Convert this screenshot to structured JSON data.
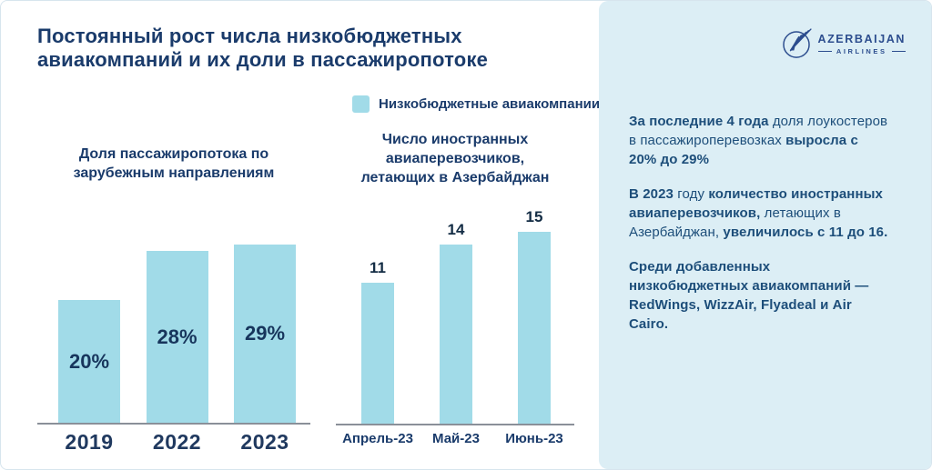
{
  "header": {
    "title": "Постоянный рост числа низкобюджетных авиакомпаний и их доли в пассажиропотоке"
  },
  "legend": {
    "label": "Низкобюджетные авиакомпании",
    "swatch_color": "#a1dbe8"
  },
  "logo": {
    "brand": "AZERBAIJAN",
    "sub": "AIRLINES",
    "color": "#2c4d8e"
  },
  "colors": {
    "bar_fill": "#a1dbe8",
    "title_navy": "#1a3b6b",
    "panel_background": "#dceef5",
    "panel_text": "#1d4e7a",
    "axis_line": "#8a9099"
  },
  "chart_data": [
    {
      "type": "bar",
      "title": "Доля пассажиропотока по зарубежным направлениям",
      "categories": [
        "2019",
        "2022",
        "2023"
      ],
      "values": [
        20,
        28,
        29
      ],
      "value_labels": [
        "20%",
        "28%",
        "29%"
      ],
      "ylabel": "",
      "xlabel": "",
      "ylim": [
        0,
        32
      ],
      "grid": false,
      "bar_color": "#a1dbe8",
      "label_position": "inside-center"
    },
    {
      "type": "bar",
      "title": "Число иностранных авиаперевозчиков, летающих в Азербайджан",
      "categories": [
        "Апрель-23",
        "Май-23",
        "Июнь-23"
      ],
      "values": [
        11,
        14,
        15
      ],
      "value_labels": [
        "11",
        "14",
        "15"
      ],
      "ylabel": "",
      "xlabel": "",
      "ylim": [
        0,
        16
      ],
      "grid": false,
      "bar_color": "#a1dbe8",
      "label_position": "above"
    }
  ],
  "panel": {
    "paragraphs": [
      {
        "segments": [
          {
            "text": "За последние 4 года ",
            "bold": true
          },
          {
            "text": "доля лоукостеров в пассажироперевозках ",
            "bold": false
          },
          {
            "text": "выросла с 20% до 29%",
            "bold": true
          }
        ]
      },
      {
        "segments": [
          {
            "text": "В 2023 ",
            "bold": true
          },
          {
            "text": "году ",
            "bold": false
          },
          {
            "text": "количество иностранных авиаперевозчиков, ",
            "bold": true
          },
          {
            "text": "летающих в Азербайджан, ",
            "bold": false
          },
          {
            "text": "увеличилось с 11 до 16.",
            "bold": true
          }
        ]
      },
      {
        "segments": [
          {
            "text": "Среди добавленных низкобюджетных авиакомпаний — RedWings, WizzAir, Flyadeal и Air Cairo.",
            "bold": true
          }
        ]
      }
    ]
  }
}
